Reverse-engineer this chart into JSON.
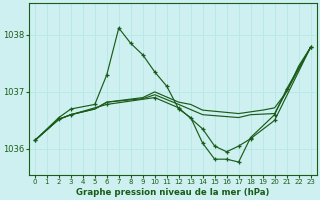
{
  "title": "Graphe pression niveau de la mer (hPa)",
  "bg_color": "#cff0f0",
  "grid_color": "#b8e8e8",
  "line_color": "#1a5c1a",
  "xlim": [
    -0.5,
    23.5
  ],
  "ylim": [
    1035.55,
    1038.55
  ],
  "yticks": [
    1036,
    1037,
    1038
  ],
  "xticks": [
    0,
    1,
    2,
    3,
    4,
    5,
    6,
    7,
    8,
    9,
    10,
    11,
    12,
    13,
    14,
    15,
    16,
    17,
    18,
    19,
    20,
    21,
    22,
    23
  ],
  "line1_x": [
    0,
    2,
    3,
    5,
    6,
    7,
    8,
    9,
    10,
    11,
    12,
    13,
    14,
    15,
    16,
    17,
    18,
    20,
    21,
    23
  ],
  "line1_y": [
    1036.15,
    1036.55,
    1036.7,
    1036.78,
    1037.3,
    1038.12,
    1037.85,
    1037.65,
    1037.35,
    1037.1,
    1036.7,
    1036.55,
    1036.1,
    1035.82,
    1035.82,
    1035.77,
    1036.2,
    1036.6,
    1037.05,
    1037.78
  ],
  "line2_x": [
    0,
    2,
    3,
    5,
    6,
    9,
    10,
    12,
    13,
    14,
    17,
    18,
    19,
    20,
    21,
    22,
    23
  ],
  "line2_y": [
    1036.15,
    1036.52,
    1036.6,
    1036.7,
    1036.82,
    1036.9,
    1037.0,
    1036.82,
    1036.78,
    1036.68,
    1036.62,
    1036.65,
    1036.68,
    1036.72,
    1037.0,
    1037.45,
    1037.78
  ],
  "line3_x": [
    0,
    2,
    3,
    5,
    6,
    9,
    10,
    12,
    14,
    17,
    18,
    20,
    23
  ],
  "line3_y": [
    1036.15,
    1036.52,
    1036.6,
    1036.7,
    1036.82,
    1036.88,
    1036.95,
    1036.78,
    1036.6,
    1036.55,
    1036.6,
    1036.62,
    1037.78
  ],
  "line4_x": [
    0,
    2,
    3,
    6,
    10,
    12,
    14,
    15,
    16,
    17,
    18,
    20,
    23
  ],
  "line4_y": [
    1036.15,
    1036.52,
    1036.6,
    1036.78,
    1036.9,
    1036.72,
    1036.35,
    1036.05,
    1035.95,
    1036.05,
    1036.18,
    1036.5,
    1037.78
  ]
}
